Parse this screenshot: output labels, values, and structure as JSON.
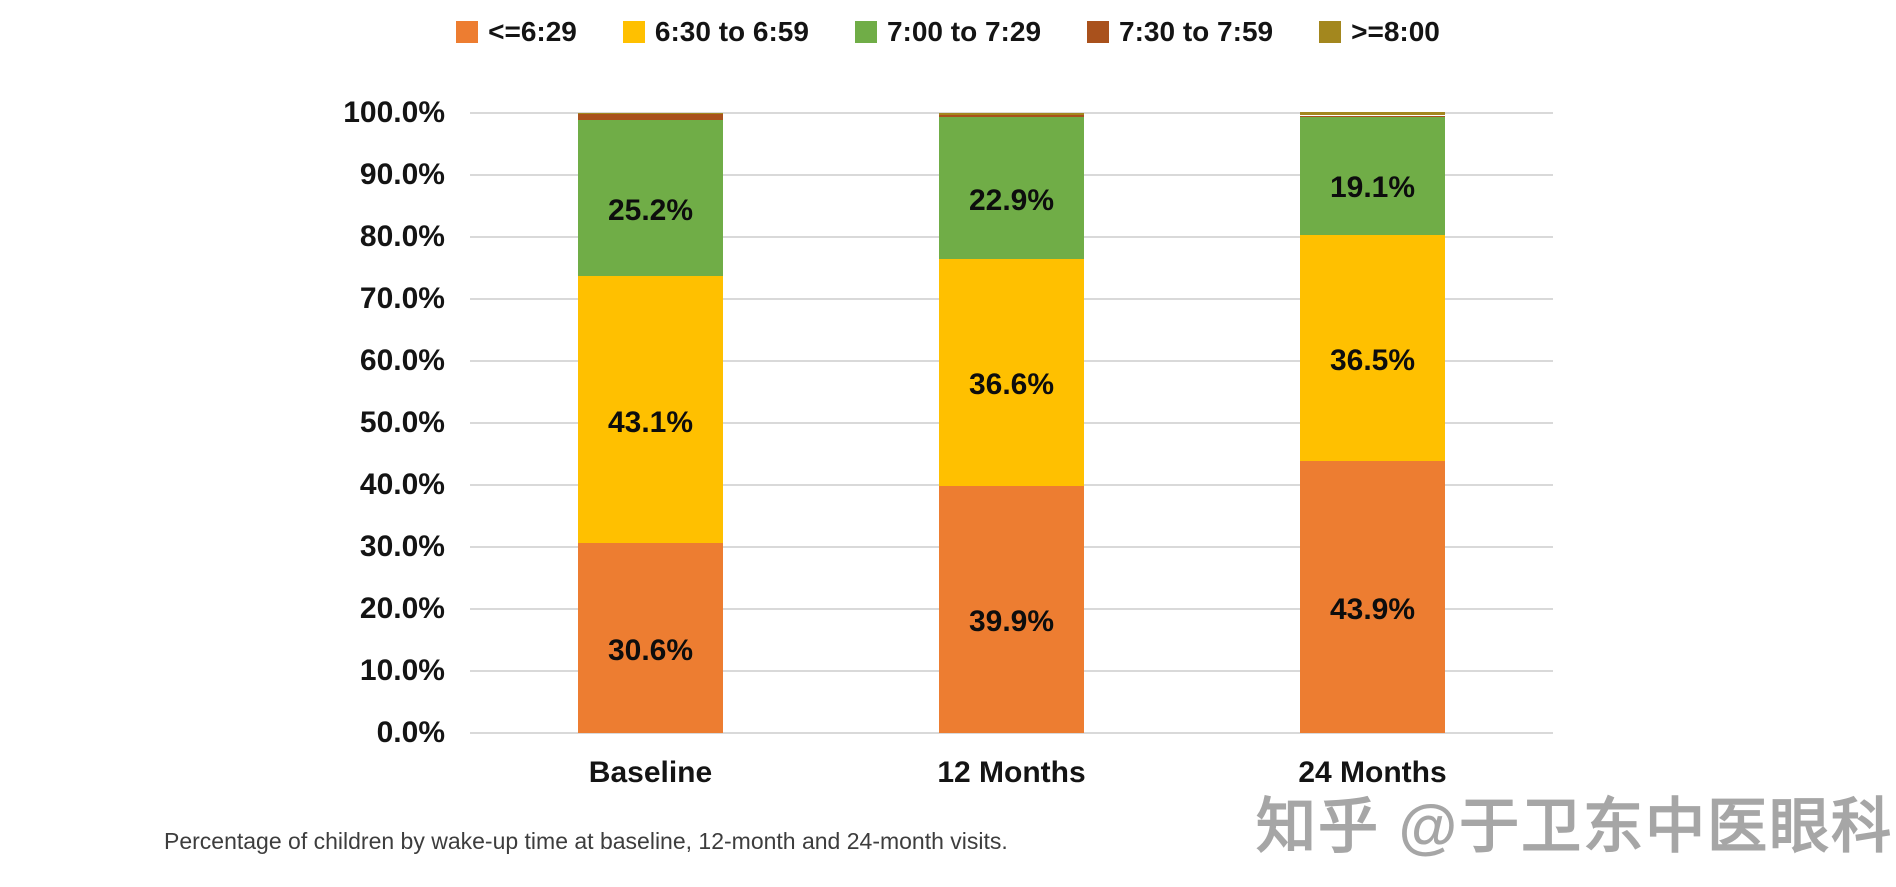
{
  "legend": {
    "items": [
      {
        "label": "<=6:29",
        "color": "#ED7D31"
      },
      {
        "label": "6:30 to 6:59",
        "color": "#FFC000"
      },
      {
        "label": "7:00 to 7:29",
        "color": "#70AD47"
      },
      {
        "label": "7:30 to 7:59",
        "color": "#A9511C"
      },
      {
        "label": ">=8:00",
        "color": "#A3871E"
      }
    ]
  },
  "chart_data": {
    "type": "bar",
    "subtype": "stacked-percentage-column",
    "categories": [
      "Baseline",
      "12 Months",
      "24 Months"
    ],
    "series": [
      {
        "name": "<=6:29",
        "color": "#ED7D31",
        "values": [
          30.6,
          39.9,
          43.9
        ]
      },
      {
        "name": "6:30 to 6:59",
        "color": "#FFC000",
        "values": [
          43.1,
          36.6,
          36.5
        ]
      },
      {
        "name": "7:00 to 7:29",
        "color": "#70AD47",
        "values": [
          25.2,
          22.9,
          19.1
        ]
      },
      {
        "name": "7:30 to 7:59",
        "color": "#A9511C",
        "values": [
          0.9,
          0.3,
          0.1
        ]
      },
      {
        "name": ">=8:00",
        "color": "#A3871E",
        "values": [
          0.2,
          0.3,
          0.5
        ]
      }
    ],
    "data_labels_visible": [
      "30.6%",
      "43.1%",
      "25.2%",
      "39.9%",
      "36.6%",
      "22.9%",
      "43.9%",
      "36.5%",
      "19.1%"
    ],
    "title": "",
    "xlabel": "",
    "ylabel": "",
    "yticks": [
      "100.0%",
      "90.0%",
      "80.0%",
      "70.0%",
      "60.0%",
      "50.0%",
      "40.0%",
      "30.0%",
      "20.0%",
      "10.0%",
      "0.0%"
    ],
    "ylim": [
      0,
      100
    ],
    "grid": true,
    "gridline_color": "#D9D9D9",
    "legend_position": "top",
    "min_label_value": 2
  },
  "caption": "Percentage of children by wake-up time at baseline, 12-month and 24-month visits.",
  "watermark": "知乎 @于卫东中医眼科"
}
